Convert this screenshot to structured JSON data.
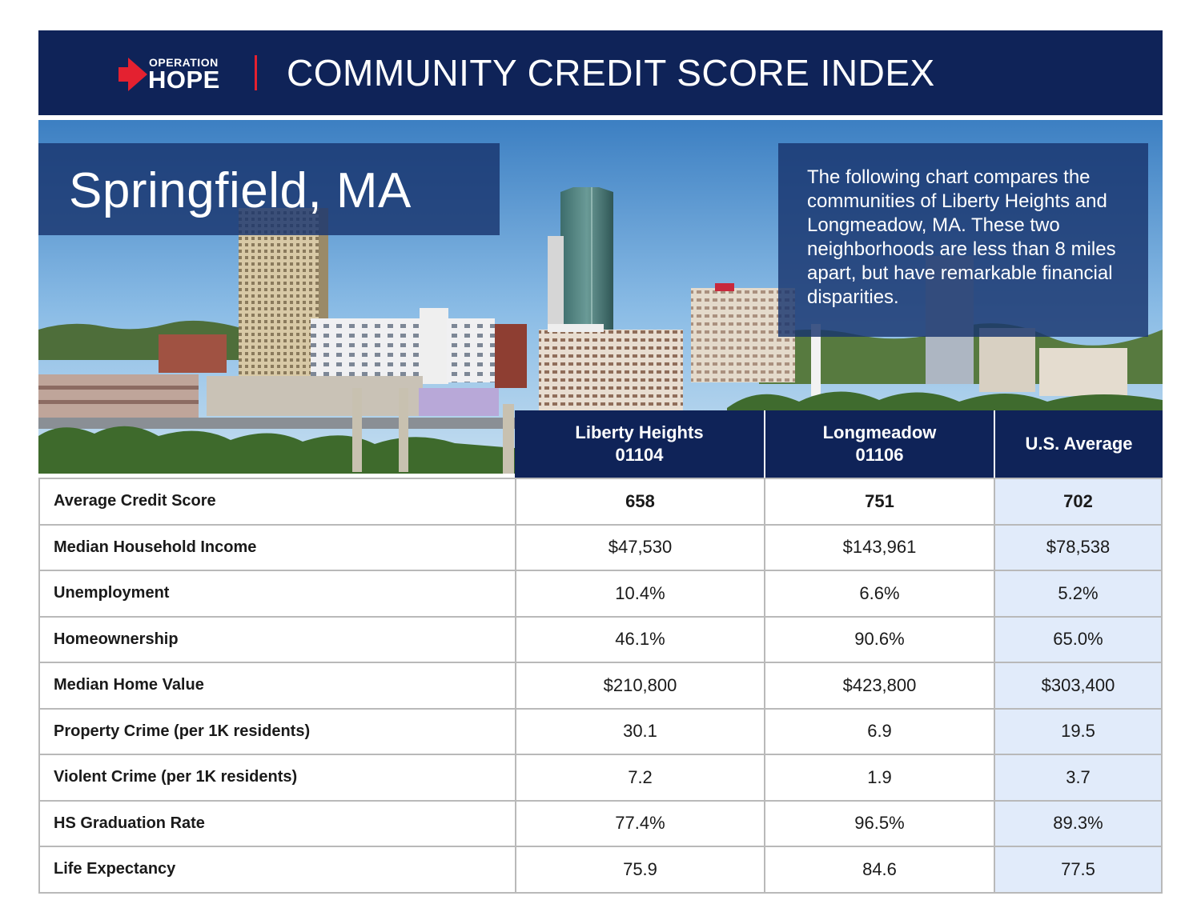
{
  "header": {
    "logo_top": "OPERATION",
    "logo_bottom": "HOPE",
    "title": "COMMUNITY CREDIT SCORE INDEX"
  },
  "hero": {
    "city": "Springfield, MA",
    "description": "The following chart compares the communities of Liberty Heights and Longmeadow, MA. These two neighborhoods are less than 8 miles apart, but have remarkable financial disparities."
  },
  "table": {
    "columns": [
      {
        "name": "Liberty Heights",
        "sub": "01104"
      },
      {
        "name": "Longmeadow",
        "sub": "01106"
      },
      {
        "name": "U.S. Average",
        "sub": ""
      }
    ],
    "rows": [
      {
        "label": "Average Credit Score",
        "values": [
          "658",
          "751",
          "702"
        ]
      },
      {
        "label": "Median Household Income",
        "values": [
          "$47,530",
          "$143,961",
          "$78,538"
        ]
      },
      {
        "label": "Unemployment",
        "values": [
          "10.4%",
          "6.6%",
          "5.2%"
        ]
      },
      {
        "label": "Homeownership",
        "values": [
          "46.1%",
          "90.6%",
          "65.0%"
        ]
      },
      {
        "label": "Median Home Value",
        "values": [
          "$210,800",
          "$423,800",
          "$303,400"
        ]
      },
      {
        "label": "Property Crime (per 1K residents)",
        "values": [
          "30.1",
          "6.9",
          "19.5"
        ]
      },
      {
        "label": "Violent Crime (per 1K residents)",
        "values": [
          "7.2",
          "1.9",
          "3.7"
        ]
      },
      {
        "label": "HS Graduation Rate",
        "values": [
          "77.4%",
          "96.5%",
          "89.3%"
        ]
      },
      {
        "label": "Life Expectancy",
        "values": [
          "75.9",
          "84.6",
          "77.5"
        ]
      }
    ]
  },
  "colors": {
    "navy": "#0f2358",
    "accent_red": "#e42130",
    "us_column_bg": "#e1ebfa"
  }
}
